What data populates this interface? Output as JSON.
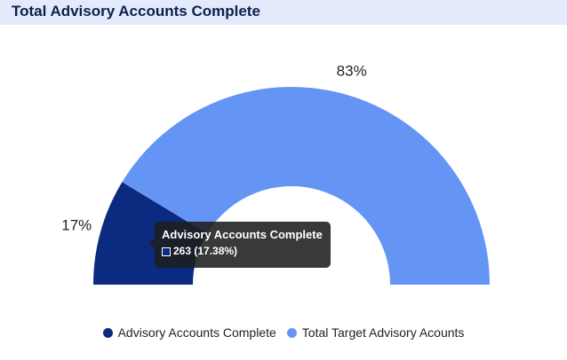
{
  "header": {
    "title": "Total Advisory Accounts Complete"
  },
  "chart_data": {
    "type": "pie",
    "variant": "semi-donut",
    "title": "Total Advisory Accounts Complete",
    "categories": [
      "Advisory Accounts Complete",
      "Total Target Advisory Acounts"
    ],
    "values": [
      17.38,
      82.62
    ],
    "data_labels": [
      "17%",
      "83%"
    ],
    "colors": [
      "#0a2b80",
      "#6495f5"
    ],
    "legend_position": "bottom"
  },
  "tooltip": {
    "title": "Advisory Accounts Complete",
    "value_text": "263 (17.38%)"
  }
}
